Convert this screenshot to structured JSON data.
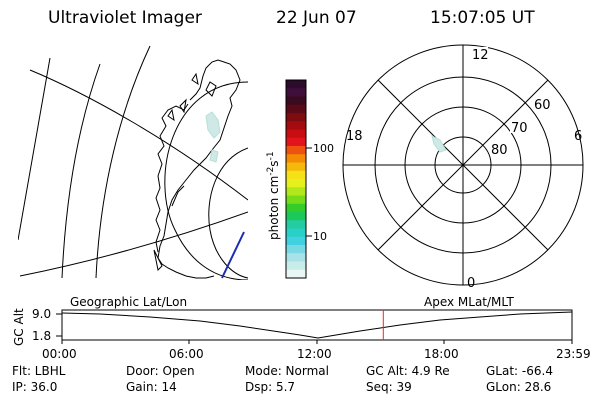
{
  "header": {
    "title": "Ultraviolet Imager",
    "date": "22 Jun 07",
    "time": "15:07:05 UT"
  },
  "colorbar": {
    "unit": "photon cm",
    "unit_exp1": "-2",
    "unit_mid": "s",
    "unit_exp2": "-1",
    "ticks": [
      "100",
      "10"
    ],
    "colors": [
      "#2c0c2c",
      "#3e0f3a",
      "#3a0a1e",
      "#5a0a16",
      "#7c0c10",
      "#a40b0f",
      "#c80e10",
      "#e4141c",
      "#ee5210",
      "#f48b07",
      "#f6b80a",
      "#f6e118",
      "#e6f01c",
      "#b0e81c",
      "#76dc1a",
      "#34cc28",
      "#1cc85a",
      "#24cca0",
      "#28d0c8",
      "#40d0e0",
      "#78d8e4",
      "#a8e2e8",
      "#c8ece8",
      "#e8f6f4"
    ]
  },
  "polar": {
    "mlt_labels": {
      "top": "12",
      "left": "18",
      "right": "6",
      "bottom": "0"
    },
    "lat_labels": [
      "80",
      "70",
      "60"
    ]
  },
  "timeline": {
    "left_caption": "Geographic Lat/Lon",
    "right_caption": "Apex MLat/MLT",
    "axis_label": "GC Alt",
    "y_max": "9.0",
    "y_min": "1.8",
    "time_ticks": [
      "00:00",
      "06:00",
      "12:00",
      "18:00",
      "23:59"
    ],
    "current_time_hours": 15.118,
    "marker_color": "#ff2020"
  },
  "info": {
    "flt": "Flt:  LBHL",
    "door": "Door:  Open",
    "mode": "Mode:  Normal",
    "gc_alt": "GC Alt:  4.9 Re",
    "glat": "GLat:   -66.4",
    "ip": "IP:  36.0",
    "gain": "Gain:  14",
    "dsp": "Dsp:      5.7",
    "seq": "Seq:  39",
    "glon": "GLon:    28.6"
  }
}
